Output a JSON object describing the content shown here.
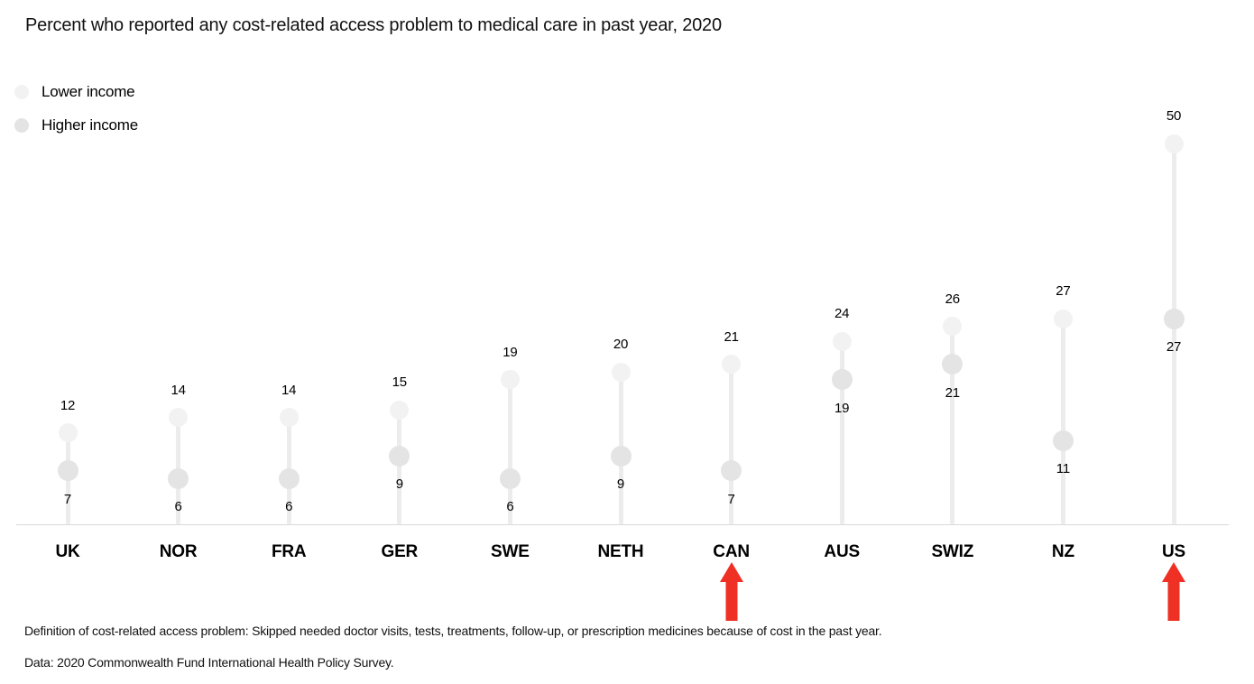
{
  "title": "Percent who reported any cost-related access problem to medical care in past year, 2020",
  "legend": [
    {
      "label": "Lower income",
      "color": "#f2f2f2"
    },
    {
      "label": "Higher income",
      "color": "#e4e4e4"
    }
  ],
  "chart_data": {
    "type": "lollipop",
    "title": "Percent who reported any cost-related access problem to medical care in past year, 2020",
    "categories": [
      "UK",
      "NOR",
      "FRA",
      "GER",
      "SWE",
      "NETH",
      "CAN",
      "AUS",
      "SWIZ",
      "NZ",
      "US"
    ],
    "series": [
      {
        "name": "Lower income",
        "color": "#f2f2f2",
        "values": [
          12,
          14,
          14,
          15,
          19,
          20,
          21,
          24,
          26,
          27,
          50
        ]
      },
      {
        "name": "Higher income",
        "color": "#e4e4e4",
        "values": [
          7,
          6,
          6,
          9,
          6,
          9,
          7,
          19,
          21,
          11,
          27
        ]
      }
    ],
    "ylim": [
      0,
      52
    ],
    "grid": false,
    "axis": "baseline-only",
    "legend_position": "top-left",
    "value_labels": "all-points",
    "highlighted_categories": [
      "CAN",
      "US"
    ],
    "annotation_style": "red-up-arrow"
  },
  "colors": {
    "arrow_red": "#ee3124",
    "stem": "#ececec",
    "axis_line": "#d9d9d9",
    "lower_dot": "#f2f2f2",
    "higher_dot": "#e4e4e4"
  },
  "footnotes": [
    "Definition of cost-related access problem: Skipped needed doctor visits, tests, treatments, follow-up, or prescription medicines because of cost in the past year.",
    "Data: 2020 Commonwealth Fund International Health Policy Survey."
  ]
}
